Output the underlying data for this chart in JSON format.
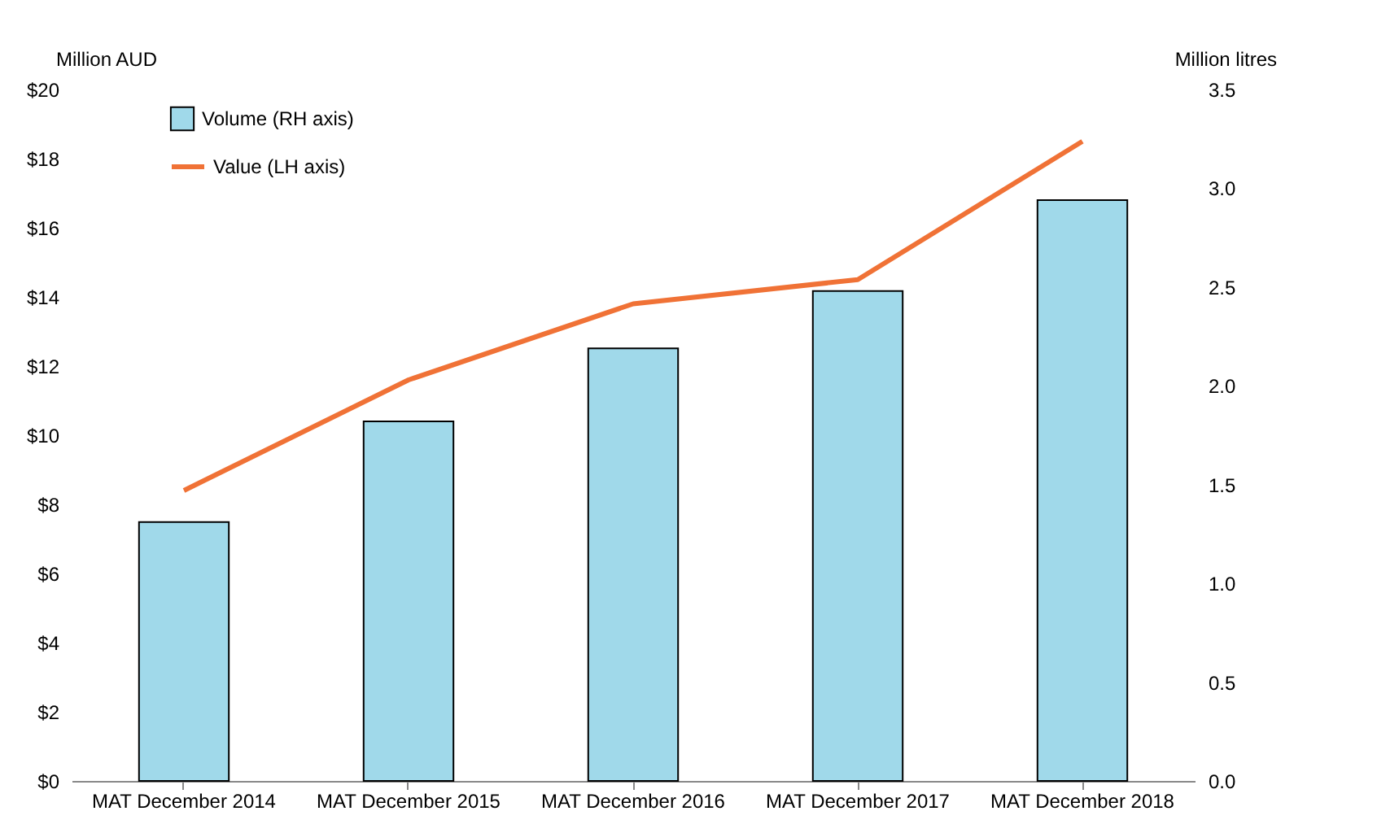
{
  "chart_data": {
    "type": "bar",
    "categories": [
      "MAT December 2014",
      "MAT December 2015",
      "MAT December 2016",
      "MAT December 2017",
      "MAT December 2018"
    ],
    "ylabel": "Million AUD",
    "y2label": "Million litres",
    "series": [
      {
        "name": "Volume (RH axis)",
        "axis": "y2",
        "color": "#a0d9ea",
        "values": [
          1.31,
          1.82,
          2.19,
          2.48,
          2.94
        ]
      },
      {
        "name": "Value (LH axis)",
        "type": "line",
        "color": "#f07236",
        "values": [
          8.4,
          11.6,
          13.8,
          14.5,
          18.5
        ]
      }
    ],
    "ylim": [
      0,
      20
    ],
    "yticks": [
      {
        "value": 0,
        "label": "$0"
      },
      {
        "value": 2,
        "label": "$2"
      },
      {
        "value": 4,
        "label": "$4"
      },
      {
        "value": 6,
        "label": "$6"
      },
      {
        "value": 8,
        "label": "$8"
      },
      {
        "value": 10,
        "label": "$10"
      },
      {
        "value": 12,
        "label": "$12"
      },
      {
        "value": 14,
        "label": "$14"
      },
      {
        "value": 16,
        "label": "$16"
      },
      {
        "value": 18,
        "label": "$18"
      },
      {
        "value": 20,
        "label": "$20"
      }
    ],
    "y2lim": [
      0,
      3.5
    ],
    "y2ticks": [
      {
        "value": 0,
        "label": "0.0"
      },
      {
        "value": 0.5,
        "label": "0.5"
      },
      {
        "value": 1,
        "label": "1.0"
      },
      {
        "value": 1.5,
        "label": "1.5"
      },
      {
        "value": 2,
        "label": "2.0"
      },
      {
        "value": 2.5,
        "label": "2.5"
      },
      {
        "value": 3,
        "label": "3.0"
      },
      {
        "value": 3.5,
        "label": "3.5"
      }
    ],
    "grid": false,
    "legend": "top left"
  }
}
